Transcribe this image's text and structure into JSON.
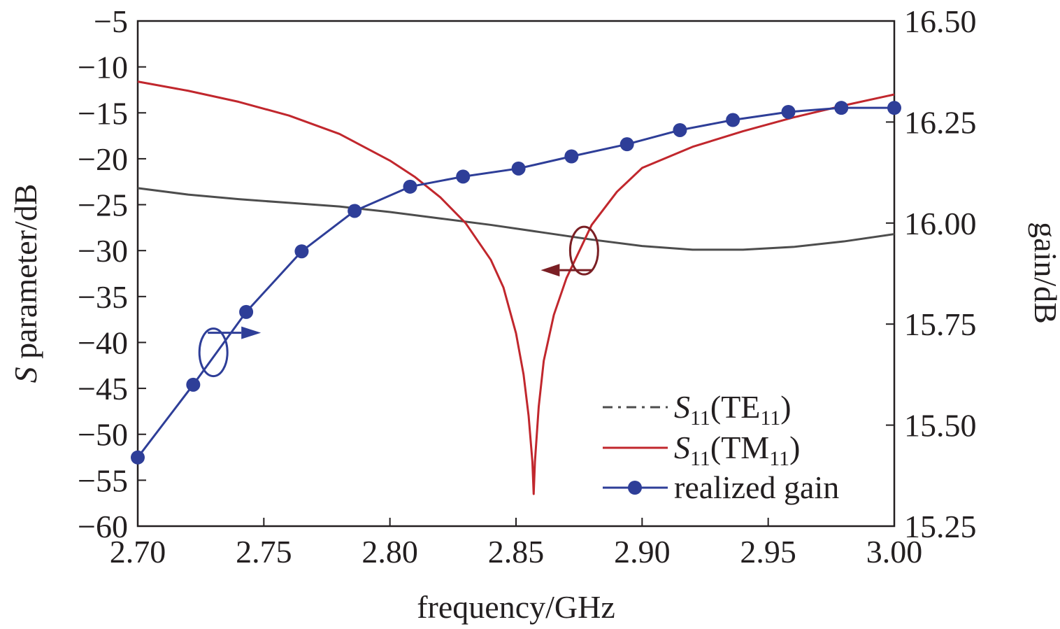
{
  "chart_data": {
    "type": "line",
    "x_axis": {
      "label": "frequency/GHz",
      "range": [
        2.7,
        3.0
      ],
      "ticks": [
        "2.70",
        "2.75",
        "2.80",
        "2.85",
        "2.90",
        "2.95",
        "3.00"
      ],
      "tick_values": [
        2.7,
        2.75,
        2.8,
        2.85,
        2.9,
        2.95,
        3.0
      ]
    },
    "y_left": {
      "label_italic": "S",
      "label_rest": " parameter/dB",
      "range": [
        -60,
        -5
      ],
      "ticks": [
        "−5",
        "−10",
        "−15",
        "−20",
        "−25",
        "−30",
        "−35",
        "−40",
        "−45",
        "−50",
        "−55",
        "−60"
      ],
      "tick_values": [
        -5,
        -10,
        -15,
        -20,
        -25,
        -30,
        -35,
        -40,
        -45,
        -50,
        -55,
        -60
      ]
    },
    "y_right": {
      "label": "gain/dB",
      "range": [
        15.25,
        16.5
      ],
      "ticks": [
        "16.50",
        "16.25",
        "16.00",
        "15.75",
        "15.50",
        "15.25"
      ],
      "tick_values": [
        16.5,
        16.25,
        16.0,
        15.75,
        15.5,
        15.25
      ]
    },
    "series": [
      {
        "key": "te11",
        "legend_s": "S",
        "legend_sub1": "11",
        "legend_mode": "(TE",
        "legend_sub2": "11",
        "legend_close": ")",
        "axis": "left",
        "color": "#4d4d4d",
        "points": [
          [
            2.7,
            -23.2
          ],
          [
            2.72,
            -23.9
          ],
          [
            2.74,
            -24.4
          ],
          [
            2.76,
            -24.8
          ],
          [
            2.78,
            -25.2
          ],
          [
            2.8,
            -25.8
          ],
          [
            2.82,
            -26.5
          ],
          [
            2.84,
            -27.2
          ],
          [
            2.86,
            -28.0
          ],
          [
            2.88,
            -28.8
          ],
          [
            2.9,
            -29.5
          ],
          [
            2.92,
            -29.9
          ],
          [
            2.94,
            -29.9
          ],
          [
            2.96,
            -29.6
          ],
          [
            2.98,
            -29.0
          ],
          [
            3.0,
            -28.2
          ]
        ]
      },
      {
        "key": "tm11",
        "legend_s": "S",
        "legend_sub1": "11",
        "legend_mode": "(TM",
        "legend_sub2": "11",
        "legend_close": ")",
        "axis": "left",
        "color": "#c1272d",
        "points": [
          [
            2.7,
            -11.6
          ],
          [
            2.72,
            -12.6
          ],
          [
            2.74,
            -13.8
          ],
          [
            2.76,
            -15.3
          ],
          [
            2.78,
            -17.3
          ],
          [
            2.8,
            -20.2
          ],
          [
            2.81,
            -22.0
          ],
          [
            2.82,
            -24.2
          ],
          [
            2.83,
            -27.0
          ],
          [
            2.84,
            -31.0
          ],
          [
            2.845,
            -34.0
          ],
          [
            2.85,
            -39.0
          ],
          [
            2.853,
            -43.5
          ],
          [
            2.855,
            -48.0
          ],
          [
            2.8565,
            -53.0
          ],
          [
            2.857,
            -56.5
          ],
          [
            2.8575,
            -53.0
          ],
          [
            2.859,
            -47.0
          ],
          [
            2.861,
            -42.0
          ],
          [
            2.865,
            -37.0
          ],
          [
            2.87,
            -33.0
          ],
          [
            2.88,
            -27.2
          ],
          [
            2.89,
            -23.6
          ],
          [
            2.9,
            -21.0
          ],
          [
            2.92,
            -18.7
          ],
          [
            2.94,
            -17.0
          ],
          [
            2.96,
            -15.5
          ],
          [
            2.98,
            -14.2
          ],
          [
            3.0,
            -13.0
          ]
        ]
      },
      {
        "key": "gain",
        "legend_text": "realized gain",
        "axis": "right",
        "color": "#2e3e98",
        "marker": "circle",
        "points": [
          [
            2.7,
            15.42
          ],
          [
            2.722,
            15.6
          ],
          [
            2.743,
            15.78
          ],
          [
            2.765,
            15.93
          ],
          [
            2.786,
            16.03
          ],
          [
            2.808,
            16.09
          ],
          [
            2.829,
            16.115
          ],
          [
            2.851,
            16.135
          ],
          [
            2.872,
            16.165
          ],
          [
            2.894,
            16.195
          ],
          [
            2.915,
            16.23
          ],
          [
            2.936,
            16.255
          ],
          [
            2.958,
            16.275
          ],
          [
            2.979,
            16.285
          ],
          [
            3.0,
            16.285
          ]
        ]
      }
    ],
    "annotations": [
      {
        "target": "left",
        "near_x": 2.877,
        "near_y": -30,
        "direction": "left",
        "color": "#7a1f24"
      },
      {
        "target": "right",
        "near_x": 2.73,
        "near_y": 15.68,
        "direction": "right",
        "color": "#2e3e98"
      }
    ],
    "legend_position": "bottom-right",
    "grid": false
  }
}
